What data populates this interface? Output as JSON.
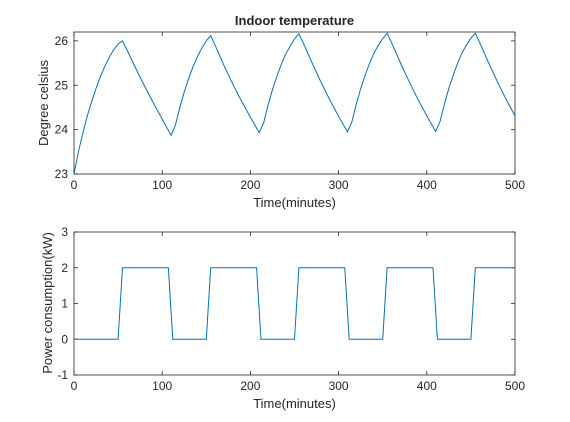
{
  "chart_data": [
    {
      "type": "line",
      "title": "Indoor temperature",
      "xlabel": "Time(minutes)",
      "ylabel": "Degree celsius",
      "xlim": [
        0,
        500
      ],
      "ylim": [
        23,
        26.2
      ],
      "xticks": [
        "0",
        "100",
        "200",
        "300",
        "400",
        "500"
      ],
      "yticks": [
        "23",
        "24",
        "25",
        "26"
      ],
      "grid": false,
      "line_color": "#0072bd",
      "series": [
        {
          "x": [
            0,
            5,
            10,
            15,
            20,
            25,
            30,
            35,
            40,
            45,
            50,
            55,
            60,
            70,
            80,
            90,
            100,
            110,
            115,
            120,
            125,
            130,
            135,
            140,
            145,
            150,
            155,
            160,
            170,
            180,
            190,
            200,
            210,
            215,
            220,
            225,
            230,
            235,
            240,
            245,
            250,
            255,
            260,
            270,
            280,
            290,
            300,
            310,
            315,
            320,
            325,
            330,
            335,
            340,
            345,
            350,
            355,
            360,
            370,
            380,
            390,
            400,
            410,
            415,
            420,
            425,
            430,
            435,
            440,
            445,
            450,
            455,
            460,
            470,
            480,
            490,
            500
          ],
          "y": [
            23.0,
            23.5,
            23.92,
            24.3,
            24.63,
            24.93,
            25.2,
            25.43,
            25.63,
            25.8,
            25.93,
            26.0,
            25.8,
            25.38,
            24.98,
            24.6,
            24.24,
            23.87,
            24.1,
            24.5,
            24.85,
            25.15,
            25.42,
            25.65,
            25.84,
            26.0,
            26.12,
            25.9,
            25.45,
            25.03,
            24.64,
            24.28,
            23.93,
            24.15,
            24.55,
            24.9,
            25.2,
            25.47,
            25.7,
            25.88,
            26.04,
            26.16,
            25.95,
            25.5,
            25.07,
            24.67,
            24.3,
            23.95,
            24.17,
            24.57,
            24.92,
            25.22,
            25.49,
            25.72,
            25.9,
            26.05,
            26.17,
            25.96,
            25.51,
            25.08,
            24.68,
            24.31,
            23.96,
            24.18,
            24.58,
            24.93,
            25.23,
            25.5,
            25.73,
            25.91,
            26.06,
            26.17,
            25.96,
            25.51,
            25.08,
            24.68,
            24.31
          ]
        }
      ]
    },
    {
      "type": "line",
      "title": "",
      "xlabel": "Time(minutes)",
      "ylabel": "Power consumption(kW)",
      "xlim": [
        0,
        500
      ],
      "ylim": [
        -1,
        3
      ],
      "xticks": [
        "0",
        "100",
        "200",
        "300",
        "400",
        "500"
      ],
      "yticks": [
        "-1",
        "0",
        "1",
        "2",
        "3"
      ],
      "grid": false,
      "line_color": "#0072bd",
      "series": [
        {
          "x": [
            0,
            50,
            55,
            107,
            112,
            150,
            155,
            207,
            212,
            250,
            255,
            307,
            312,
            350,
            355,
            407,
            412,
            450,
            455,
            500
          ],
          "y": [
            0,
            0,
            2,
            2,
            0,
            0,
            2,
            2,
            0,
            0,
            2,
            2,
            0,
            0,
            2,
            2,
            0,
            0,
            2,
            2
          ]
        }
      ]
    }
  ]
}
